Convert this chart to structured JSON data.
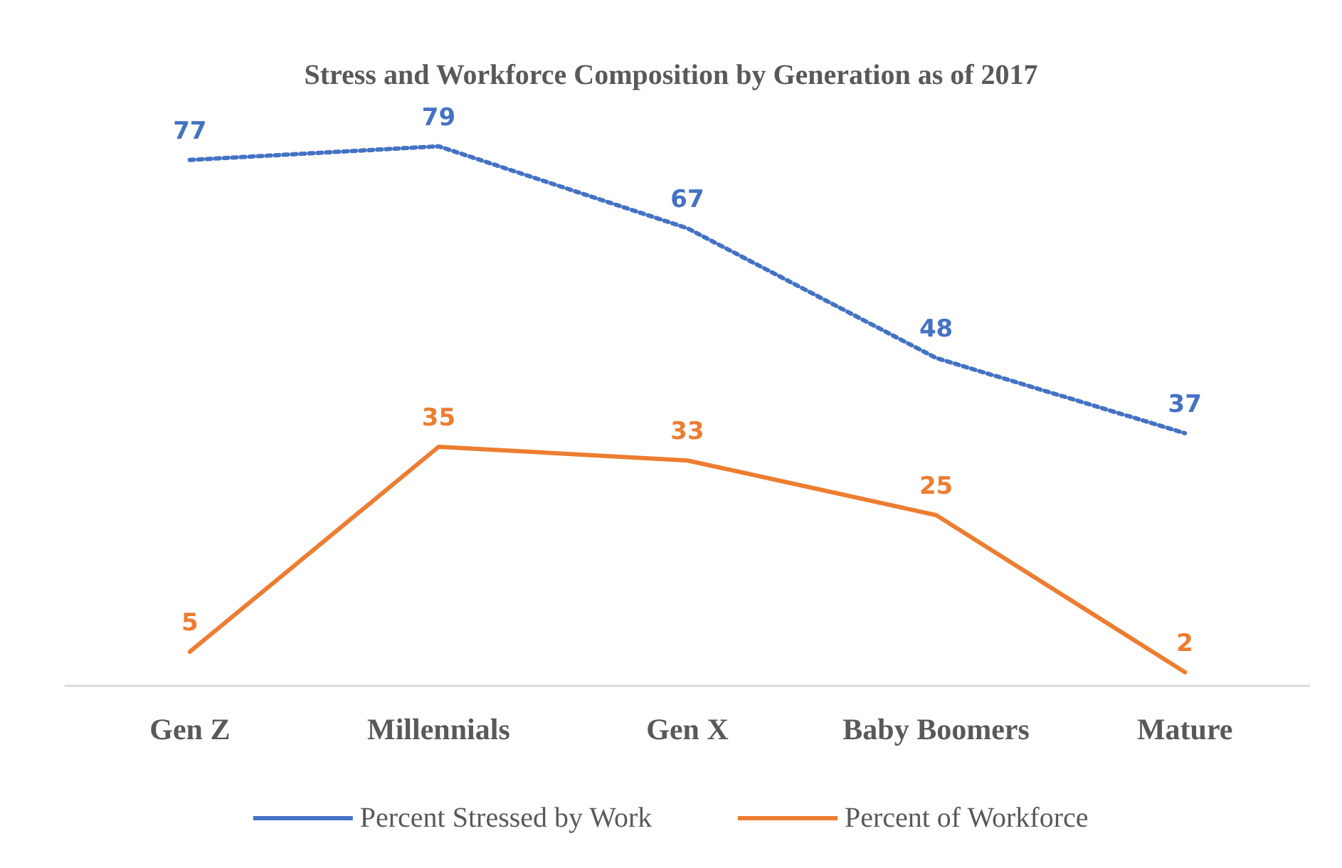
{
  "chart_data": {
    "type": "line",
    "title": "Stress and Workforce Composition by Generation as of 2017",
    "categories": [
      "Gen Z",
      "Millennials",
      "Gen X",
      "Baby Boomers",
      "Mature"
    ],
    "series": [
      {
        "name": "Percent Stressed by Work",
        "color": "#4472c4",
        "line_style": "dotted",
        "values": [
          77,
          79,
          67,
          48,
          37
        ]
      },
      {
        "name": "Percent of Workforce",
        "color": "#ed7d31",
        "line_style": "solid",
        "values": [
          5,
          35,
          33,
          25,
          2
        ]
      }
    ],
    "data_labels": true,
    "legend": "bottom",
    "grid": false
  }
}
